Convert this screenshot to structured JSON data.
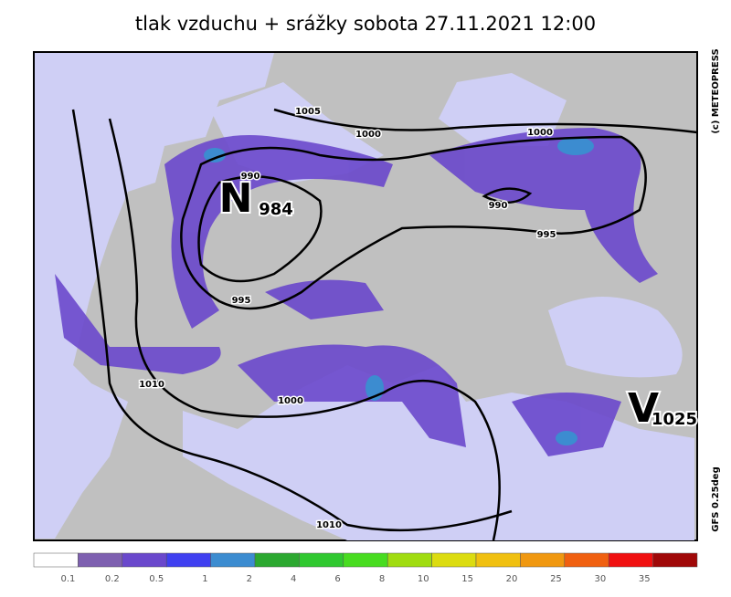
{
  "header": {
    "title": "tlak vzduchu + srážky  sobota 27.11.2021 12:00"
  },
  "map": {
    "isobar_labels": [
      "1005",
      "1000",
      "1000",
      "990",
      "990",
      "995",
      "995",
      "1010",
      "1000",
      "1010"
    ],
    "low": {
      "letter": "N",
      "value": "984"
    },
    "high": {
      "letter": "V",
      "value": "1025"
    }
  },
  "credits": {
    "copyright": "(c) METEOPRESS",
    "model": "GFS 0.25deg"
  },
  "legend": {
    "labels": [
      "0.1",
      "0.2",
      "0.5",
      "1",
      "2",
      "4",
      "6",
      "8",
      "10",
      "15",
      "20",
      "25",
      "30",
      "35"
    ],
    "colors": [
      "#ffffff",
      "#7e60b0",
      "#6a48cc",
      "#4040f0",
      "#3c8cd0",
      "#2ca830",
      "#30c830",
      "#48dc20",
      "#a0dc10",
      "#dcdc10",
      "#f0c010",
      "#f09810",
      "#f06010",
      "#f01010",
      "#a00808"
    ]
  }
}
